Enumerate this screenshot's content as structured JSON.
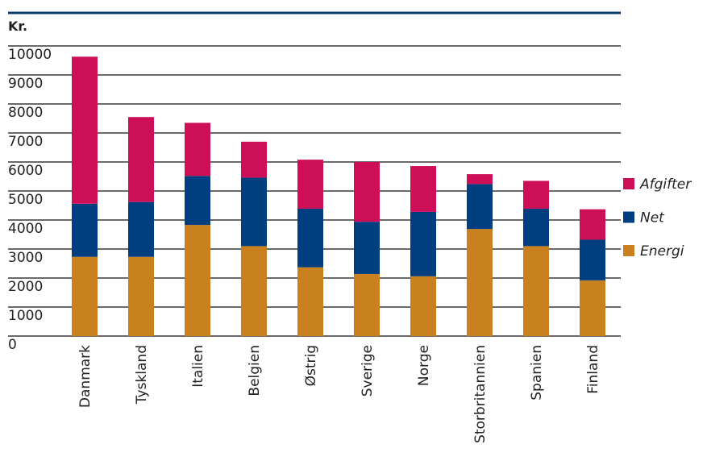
{
  "chart_data": {
    "type": "stacked_bar",
    "y_label": "Kr.",
    "categories": [
      "Danmark",
      "Tyskland",
      "Italien",
      "Belgien",
      "Østrig",
      "Sverige",
      "Norge",
      "Storbritannien",
      "Spanien",
      "Finland"
    ],
    "series": [
      {
        "name": "Energi",
        "color": "#c8811e",
        "values": [
          2730,
          2730,
          3830,
          3100,
          2370,
          2140,
          2060,
          3690,
          3100,
          1920
        ]
      },
      {
        "name": "Net",
        "color": "#003f7f",
        "values": [
          1830,
          1890,
          1690,
          2360,
          2020,
          1800,
          2220,
          1550,
          1290,
          1400
        ]
      },
      {
        "name": "Afgifter",
        "color": "#cc0f57",
        "values": [
          5070,
          2930,
          1830,
          1240,
          1690,
          2060,
          1580,
          340,
          960,
          1050
        ]
      }
    ],
    "ylim": [
      0,
      10000
    ],
    "yticks": [
      0,
      1000,
      2000,
      3000,
      4000,
      5000,
      6000,
      7000,
      8000,
      9000,
      10000
    ],
    "grid": true
  }
}
